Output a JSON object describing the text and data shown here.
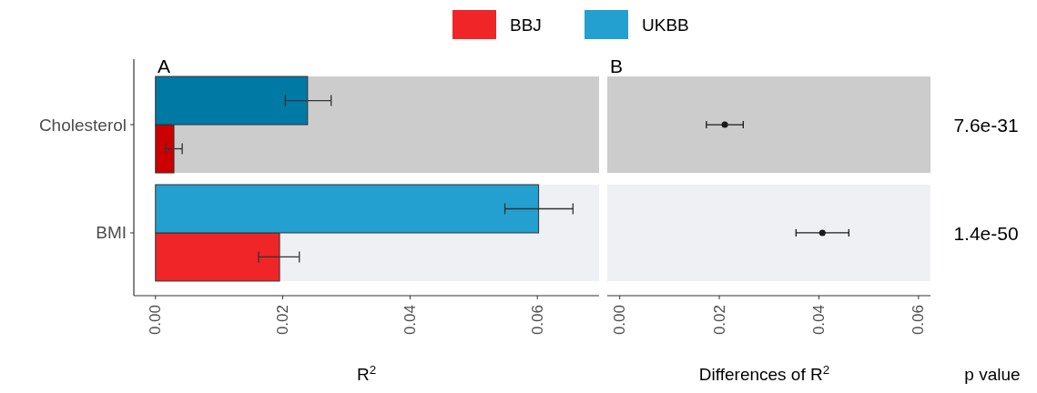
{
  "chart_data": [
    {
      "type": "bar",
      "title": "A",
      "orientation": "horizontal",
      "categories": [
        "Cholesterol",
        "BMI"
      ],
      "xlabel": "R$^{2}$",
      "xlim": [
        -0.0034,
        0.0697
      ],
      "xticks": [
        {
          "value": 0,
          "label": "0.00"
        },
        {
          "value": 0.02,
          "label": "0.02"
        },
        {
          "value": 0.04,
          "label": "0.04"
        },
        {
          "value": 0.06,
          "label": "0.06"
        }
      ],
      "legend": "top",
      "bands": [
        {
          "axis": "y",
          "from": "Cholesterol",
          "to": "Cholesterol",
          "color": "#cccccc"
        },
        {
          "axis": "y",
          "from": "BMI",
          "to": "BMI",
          "color": "#eff0f4"
        }
      ],
      "series": [
        {
          "name": "BBJ",
          "color": "#ef2528",
          "colors": [
            "#cc0000",
            "#ef2528"
          ],
          "values": [
            0.0029,
            0.0195
          ],
          "errors": [
            [
              0.0016,
              0.0042
            ],
            [
              0.0162,
              0.0226
            ]
          ]
        },
        {
          "name": "UKBB",
          "color": "#23a0cf",
          "colors": [
            "#0079a5",
            "#23a0cf"
          ],
          "values": [
            0.0239,
            0.0602
          ],
          "errors": [
            [
              0.0204,
              0.0276
            ],
            [
              0.0549,
              0.0656
            ]
          ]
        }
      ]
    },
    {
      "type": "scatter",
      "title": "B",
      "orientation": "horizontal",
      "categories": [
        "Cholesterol",
        "BMI"
      ],
      "tick_labels": "x",
      "xlabel": "Differences of R$^{2}$",
      "xlim": [
        -0.0025,
        0.0624
      ],
      "xticks": [
        {
          "value": 0,
          "label": "0.00"
        },
        {
          "value": 0.02,
          "label": "0.02"
        },
        {
          "value": 0.04,
          "label": "0.04"
        },
        {
          "value": 0.06,
          "label": "0.06"
        }
      ],
      "marker": "circle",
      "bands": [
        {
          "axis": "y",
          "from": "Cholesterol",
          "to": "Cholesterol",
          "color": "#cccccc"
        },
        {
          "axis": "y",
          "from": "BMI",
          "to": "BMI",
          "color": "#eff0f4"
        }
      ],
      "series": [
        {
          "color": "#1a1a1a",
          "values": [
            0.0211,
            0.0407
          ],
          "errors": [
            [
              0.0174,
              0.0248
            ],
            [
              0.0354,
              0.046
            ]
          ]
        }
      ],
      "annotations": [
        "7.6e-31",
        "1.4e-50",
        "p value"
      ]
    }
  ]
}
